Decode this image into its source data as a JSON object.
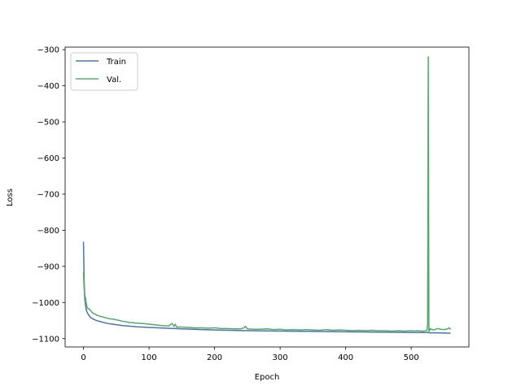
{
  "chart_data": {
    "type": "line",
    "title": "",
    "xlabel": "Epoch",
    "ylabel": "Loss",
    "xlim": [
      -28,
      588
    ],
    "ylim": [
      -1123,
      -293
    ],
    "xticks": [
      0,
      100,
      200,
      300,
      400,
      500
    ],
    "xtick_labels": [
      "0",
      "100",
      "200",
      "300",
      "400",
      "500"
    ],
    "yticks": [
      -300,
      -400,
      -500,
      -600,
      -700,
      -800,
      -900,
      -1000,
      -1100
    ],
    "ytick_labels": [
      "−300",
      "−400",
      "−500",
      "−600",
      "−700",
      "−800",
      "−900",
      "−1000",
      "−1100"
    ],
    "grid": false,
    "legend_position": "top-left",
    "series": [
      {
        "name": "Train",
        "color": "#4c72b0",
        "x": [
          0,
          1,
          2,
          3,
          4,
          5,
          7,
          10,
          15,
          20,
          30,
          40,
          60,
          80,
          100,
          150,
          200,
          250,
          300,
          350,
          400,
          450,
          500,
          526,
          527,
          540,
          560
        ],
        "y": [
          -832,
          -940,
          -985,
          -1005,
          -1018,
          -1025,
          -1032,
          -1040,
          -1046,
          -1050,
          -1055,
          -1059,
          -1064,
          -1067,
          -1069,
          -1073,
          -1076,
          -1078,
          -1079,
          -1080,
          -1081,
          -1082,
          -1083,
          -1083,
          -1084,
          -1084,
          -1085
        ]
      },
      {
        "name": "Val.",
        "color": "#55a868",
        "x": [
          0,
          1,
          2,
          3,
          4,
          5,
          6,
          8,
          10,
          12,
          15,
          18,
          20,
          25,
          30,
          35,
          40,
          45,
          50,
          60,
          70,
          80,
          90,
          100,
          110,
          120,
          130,
          135,
          138,
          140,
          142,
          150,
          160,
          170,
          180,
          190,
          200,
          210,
          220,
          230,
          240,
          245,
          247,
          250,
          260,
          270,
          280,
          290,
          300,
          310,
          320,
          330,
          340,
          350,
          360,
          370,
          380,
          390,
          400,
          410,
          420,
          430,
          440,
          450,
          460,
          470,
          480,
          490,
          500,
          505,
          510,
          515,
          520,
          524,
          525,
          526,
          527,
          528,
          529,
          530,
          535,
          540,
          545,
          550,
          555,
          558,
          560
        ],
        "y": [
          -915,
          -960,
          -995,
          -985,
          -1000,
          -1010,
          -1015,
          -1018,
          -1020,
          -1025,
          -1030,
          -1032,
          -1035,
          -1038,
          -1040,
          -1043,
          -1045,
          -1046,
          -1048,
          -1052,
          -1055,
          -1057,
          -1058,
          -1060,
          -1062,
          -1064,
          -1065,
          -1058,
          -1066,
          -1060,
          -1068,
          -1068,
          -1069,
          -1070,
          -1070,
          -1071,
          -1070,
          -1072,
          -1072,
          -1073,
          -1073,
          -1070,
          -1066,
          -1073,
          -1074,
          -1074,
          -1073,
          -1075,
          -1074,
          -1076,
          -1075,
          -1076,
          -1075,
          -1076,
          -1077,
          -1075,
          -1077,
          -1076,
          -1077,
          -1078,
          -1077,
          -1078,
          -1077,
          -1078,
          -1078,
          -1079,
          -1078,
          -1079,
          -1078,
          -1079,
          -1078,
          -1079,
          -1079,
          -1077,
          -1060,
          -320,
          -1080,
          -1078,
          -1072,
          -1074,
          -1076,
          -1072,
          -1074,
          -1075,
          -1073,
          -1070,
          -1075
        ]
      }
    ]
  }
}
